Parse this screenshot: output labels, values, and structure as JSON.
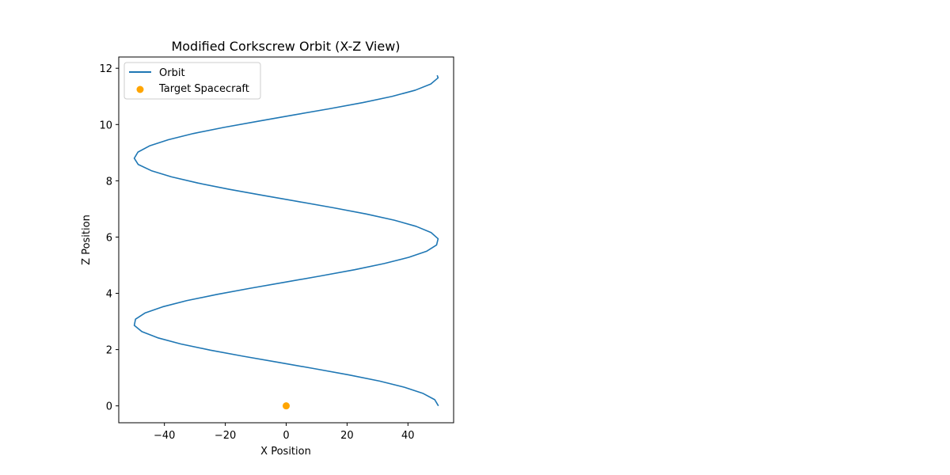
{
  "chart_data": {
    "type": "line",
    "title": "Modified Corkscrew Orbit (X-Z View)",
    "xlabel": "X Position",
    "ylabel": "Z Position",
    "xlim": [
      -55,
      55
    ],
    "ylim": [
      -0.6,
      12.4
    ],
    "xticks": [
      -40,
      -20,
      0,
      20,
      40
    ],
    "xtick_labels": [
      "−40",
      "−20",
      "0",
      "20",
      "40"
    ],
    "yticks": [
      0,
      2,
      4,
      6,
      8,
      10,
      12
    ],
    "ytick_labels": [
      "0",
      "2",
      "4",
      "6",
      "8",
      "10",
      "12"
    ],
    "grid": false,
    "legend_position": "top-left",
    "series": [
      {
        "name": "Orbit",
        "kind": "line",
        "color": "#1f77b4",
        "x": [
          50.0,
          48.8,
          45.0,
          38.9,
          30.7,
          20.6,
          9.4,
          -2.2,
          -13.9,
          -24.9,
          -34.6,
          -42.2,
          -47.4,
          -49.9,
          -49.5,
          -46.4,
          -40.6,
          -32.7,
          -22.8,
          -11.8,
          -0.2,
          11.4,
          22.5,
          32.2,
          40.3,
          46.2,
          49.4,
          49.9,
          47.6,
          42.7,
          35.5,
          26.3,
          15.6,
          4.1,
          -7.6,
          -18.8,
          -29.0,
          -37.7,
          -44.3,
          -48.6,
          -49.9,
          -48.7,
          -44.9,
          -38.7,
          -30.5,
          -20.4,
          -9.1,
          2.5,
          14.2,
          25.2,
          34.8,
          42.4,
          47.5,
          49.9,
          49.6
        ],
        "y": [
          0.0,
          0.22,
          0.44,
          0.66,
          0.88,
          1.1,
          1.32,
          1.54,
          1.76,
          1.98,
          2.2,
          2.42,
          2.64,
          2.86,
          3.08,
          3.3,
          3.52,
          3.74,
          3.96,
          4.18,
          4.4,
          4.62,
          4.84,
          5.06,
          5.28,
          5.5,
          5.72,
          5.94,
          6.16,
          6.38,
          6.6,
          6.82,
          7.04,
          7.26,
          7.48,
          7.7,
          7.92,
          8.14,
          8.36,
          8.58,
          8.8,
          9.02,
          9.24,
          9.46,
          9.68,
          9.9,
          10.12,
          10.34,
          10.56,
          10.78,
          11.0,
          11.22,
          11.44,
          11.66,
          11.75
        ]
      },
      {
        "name": "Target Spacecraft",
        "kind": "scatter",
        "color": "#ffa500",
        "x": [
          0
        ],
        "y": [
          0
        ]
      }
    ]
  }
}
